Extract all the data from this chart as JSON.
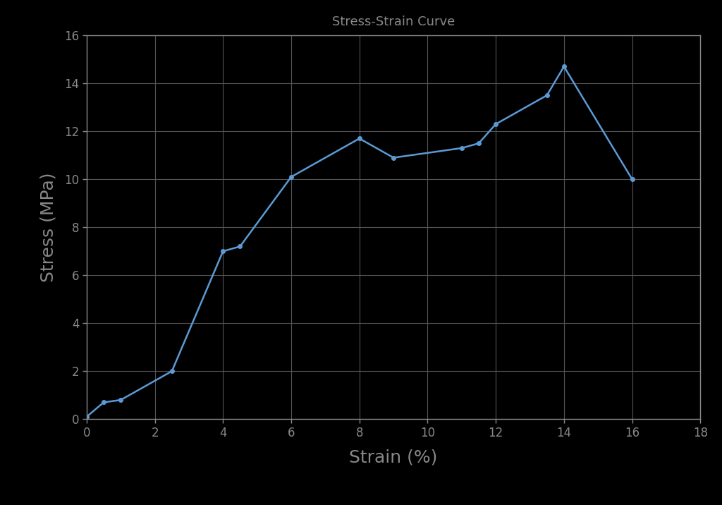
{
  "title": "Stress-Strain Curve",
  "xlabel": "Strain (%)",
  "ylabel": "Stress (MPa)",
  "xlim": [
    0,
    18
  ],
  "ylim": [
    0,
    16
  ],
  "xticks": [
    0,
    2,
    4,
    6,
    8,
    10,
    12,
    14,
    16,
    18
  ],
  "yticks": [
    0,
    2,
    4,
    6,
    8,
    10,
    12,
    14,
    16
  ],
  "strain": [
    0.0,
    0.5,
    1.0,
    2.5,
    4.0,
    4.5,
    6.0,
    8.0,
    9.0,
    11.0,
    11.5,
    12.0,
    13.5,
    14.0,
    16.0
  ],
  "stress": [
    0.1,
    0.7,
    0.8,
    2.0,
    7.0,
    7.2,
    10.1,
    11.7,
    10.9,
    11.3,
    11.5,
    12.3,
    13.5,
    14.7,
    10.0
  ],
  "line_color": "#5B9BD5",
  "marker": "o",
  "marker_size": 4,
  "line_width": 1.8,
  "title_fontsize": 13,
  "label_fontsize": 18,
  "tick_fontsize": 12,
  "background_color": "#000000",
  "plot_bg_color": "#000000",
  "grid_color": "#555555",
  "spine_color": "#888888",
  "tick_color": "#888888",
  "text_color": "#888888",
  "title_color": "#888888"
}
